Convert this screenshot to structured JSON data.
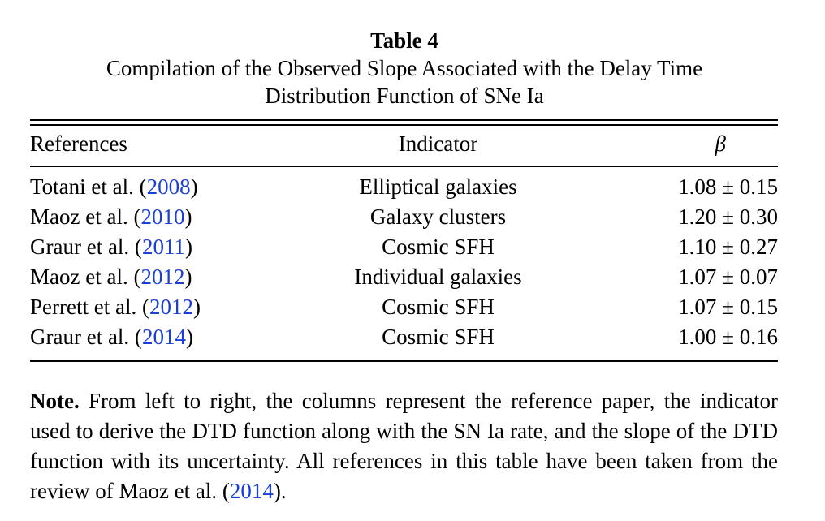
{
  "table": {
    "title": "Table 4",
    "description_line1": "Compilation of the Observed Slope Associated with the Delay Time",
    "description_line2": "Distribution Function of SNe Ia",
    "headers": {
      "references": "References",
      "indicator": "Indicator",
      "beta": "β"
    },
    "rows": [
      {
        "author": "Totani et al. (",
        "year": "2008",
        "close": ")",
        "indicator": "Elliptical galaxies",
        "beta": "1.08 ± 0.15"
      },
      {
        "author": "Maoz et al. (",
        "year": "2010",
        "close": ")",
        "indicator": "Galaxy clusters",
        "beta": "1.20 ± 0.30"
      },
      {
        "author": "Graur et al. (",
        "year": "2011",
        "close": ")",
        "indicator": "Cosmic SFH",
        "beta": "1.10 ± 0.27"
      },
      {
        "author": "Maoz et al. (",
        "year": "2012",
        "close": ")",
        "indicator": "Individual galaxies",
        "beta": "1.07 ± 0.07"
      },
      {
        "author": "Perrett et al. (",
        "year": "2012",
        "close": ")",
        "indicator": "Cosmic SFH",
        "beta": "1.07 ± 0.15"
      },
      {
        "author": "Graur et al. (",
        "year": "2014",
        "close": ")",
        "indicator": "Cosmic SFH",
        "beta": "1.00 ± 0.16"
      }
    ],
    "note": {
      "label": "Note.",
      "text_before": " From left to right, the columns represent the reference paper, the indicator used to derive the DTD function along with the SN Ia rate, and the slope of the DTD function with its uncertainty. All references in this table have been taken from the review of Maoz et al. (",
      "year": "2014",
      "text_after": ")."
    }
  },
  "colors": {
    "text": "#000000",
    "link": "#1a3fd6",
    "background": "#ffffff"
  }
}
